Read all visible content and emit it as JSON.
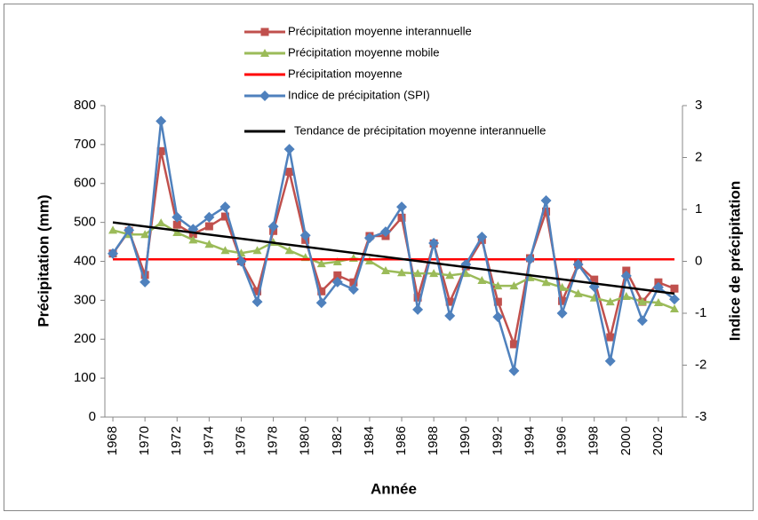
{
  "chart_data": {
    "type": "line",
    "x_label": "Année",
    "y_label": "Précipitation (mm)",
    "y2_label": "Indice de précipitation",
    "x": [
      1968,
      1969,
      1970,
      1971,
      1972,
      1973,
      1974,
      1975,
      1976,
      1977,
      1978,
      1979,
      1980,
      1981,
      1982,
      1983,
      1984,
      1985,
      1986,
      1987,
      1988,
      1989,
      1990,
      1991,
      1992,
      1993,
      1994,
      1995,
      1996,
      1997,
      1998,
      1999,
      2000,
      2001,
      2002,
      2003
    ],
    "xlim": [
      1967.5,
      2003.5
    ],
    "xticks": [
      1968,
      1970,
      1972,
      1974,
      1976,
      1978,
      1980,
      1982,
      1984,
      1986,
      1988,
      1990,
      1992,
      1994,
      1996,
      1998,
      2000,
      2002
    ],
    "ylim": [
      0,
      800
    ],
    "yticks": [
      0,
      100,
      200,
      300,
      400,
      500,
      600,
      700,
      800
    ],
    "y2lim": [
      -3,
      3
    ],
    "y2ticks": [
      -3,
      -2,
      -1,
      0,
      1,
      2,
      3
    ],
    "legend": "top",
    "series": [
      {
        "name": "Précipitation moyenne interannuelle",
        "color": "#c0504d",
        "marker": "square",
        "values": [
          420,
          478,
          365,
          683,
          494,
          470,
          490,
          515,
          400,
          323,
          478,
          630,
          455,
          323,
          364,
          346,
          465,
          465,
          512,
          307,
          446,
          296,
          387,
          455,
          296,
          187,
          408,
          528,
          298,
          392,
          353,
          205,
          376,
          296,
          346,
          330
        ]
      },
      {
        "name": "Précipitation moyenne mobile",
        "color": "#9bbb59",
        "marker": "triangle",
        "values": [
          480,
          469,
          469,
          499,
          474,
          455,
          444,
          428,
          421,
          428,
          449,
          428,
          410,
          394,
          399,
          408,
          401,
          376,
          371,
          369,
          369,
          364,
          369,
          351,
          337,
          337,
          358,
          346,
          333,
          317,
          306,
          296,
          310,
          296,
          294,
          278
        ]
      },
      {
        "name": "Précipitation moyenne",
        "color": "#ff0000",
        "values": [
          405,
          405,
          405,
          405,
          405,
          405,
          405,
          405,
          405,
          405,
          405,
          405,
          405,
          405,
          405,
          405,
          405,
          405,
          405,
          405,
          405,
          405,
          405,
          405,
          405,
          405,
          405,
          405,
          405,
          405,
          405,
          405,
          405,
          405,
          405,
          405
        ]
      },
      {
        "name": "Indice de précipitation (SPI)",
        "color": "#4f81bd",
        "marker": "diamond",
        "axis": "y2",
        "values": [
          0.15,
          0.6,
          -0.4,
          2.7,
          0.85,
          0.62,
          0.85,
          1.05,
          0,
          -0.78,
          0.67,
          2.16,
          0.5,
          -0.8,
          -0.4,
          -0.54,
          0.45,
          0.57,
          1.05,
          -0.93,
          0.35,
          -1.05,
          -0.06,
          0.47,
          -1.07,
          -2.11,
          0.04,
          1.17,
          -1.0,
          -0.06,
          -0.49,
          -1.92,
          -0.28,
          -1.14,
          -0.5,
          -0.73
        ]
      },
      {
        "name": "Tendance de précipitation moyenne interannuelle",
        "color": "#000000",
        "x": [
          1968,
          2003
        ],
        "values": [
          500,
          317
        ]
      }
    ]
  }
}
